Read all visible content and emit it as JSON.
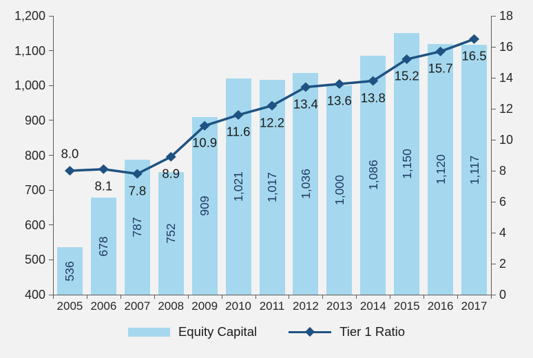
{
  "chart_data": {
    "type": "combo-bar-line",
    "title": "",
    "categories": [
      "2005",
      "2006",
      "2007",
      "2008",
      "2009",
      "2010",
      "2011",
      "2012",
      "2013",
      "2014",
      "2015",
      "2016",
      "2017"
    ],
    "series": [
      {
        "name": "Equity Capital",
        "type": "bar",
        "axis": "left",
        "values": [
          536,
          678,
          787,
          752,
          909,
          1021,
          1017,
          1036,
          1000,
          1086,
          1150,
          1120,
          1117
        ],
        "labels": [
          "536",
          "678",
          "787",
          "752",
          "909",
          "1,021",
          "1,017",
          "1,036",
          "1,000",
          "1,086",
          "1,150",
          "1,120",
          "1,117"
        ],
        "color": "#a5d8ee",
        "label_color": "#1f3864"
      },
      {
        "name": "Tier 1 Ratio",
        "type": "line",
        "axis": "right",
        "values": [
          8.0,
          8.1,
          7.8,
          8.9,
          10.9,
          11.6,
          12.2,
          13.4,
          13.6,
          13.8,
          15.2,
          15.7,
          16.5
        ],
        "labels": [
          "8.0",
          "8.1",
          "7.8",
          "8.9",
          "10.9",
          "11.6",
          "12.2",
          "13.4",
          "13.6",
          "13.8",
          "15.2",
          "15.7",
          "16.5"
        ],
        "color": "#1e5282",
        "label_color": "#1a1a1a",
        "marker": "diamond"
      }
    ],
    "axes": {
      "left": {
        "min": 400,
        "max": 1200,
        "step": 100,
        "ticks": [
          400,
          500,
          600,
          700,
          800,
          900,
          1000,
          1100,
          1200
        ],
        "tick_labels": [
          "400",
          "500",
          "600",
          "700",
          "800",
          "900",
          "1,000",
          "1,100",
          "1,200"
        ]
      },
      "right": {
        "min": 0,
        "max": 18,
        "step": 2,
        "ticks": [
          0,
          2,
          4,
          6,
          8,
          10,
          12,
          14,
          16,
          18
        ],
        "tick_labels": [
          "0",
          "2",
          "4",
          "6",
          "8",
          "10",
          "12",
          "14",
          "16",
          "18"
        ]
      }
    },
    "legend": {
      "position": "bottom",
      "entries": [
        "Equity Capital",
        "Tier 1 Ratio"
      ]
    },
    "grid": false,
    "colors": {
      "background": "#f2f2f2",
      "axis": "#595959",
      "axis_text": "#262626"
    }
  }
}
